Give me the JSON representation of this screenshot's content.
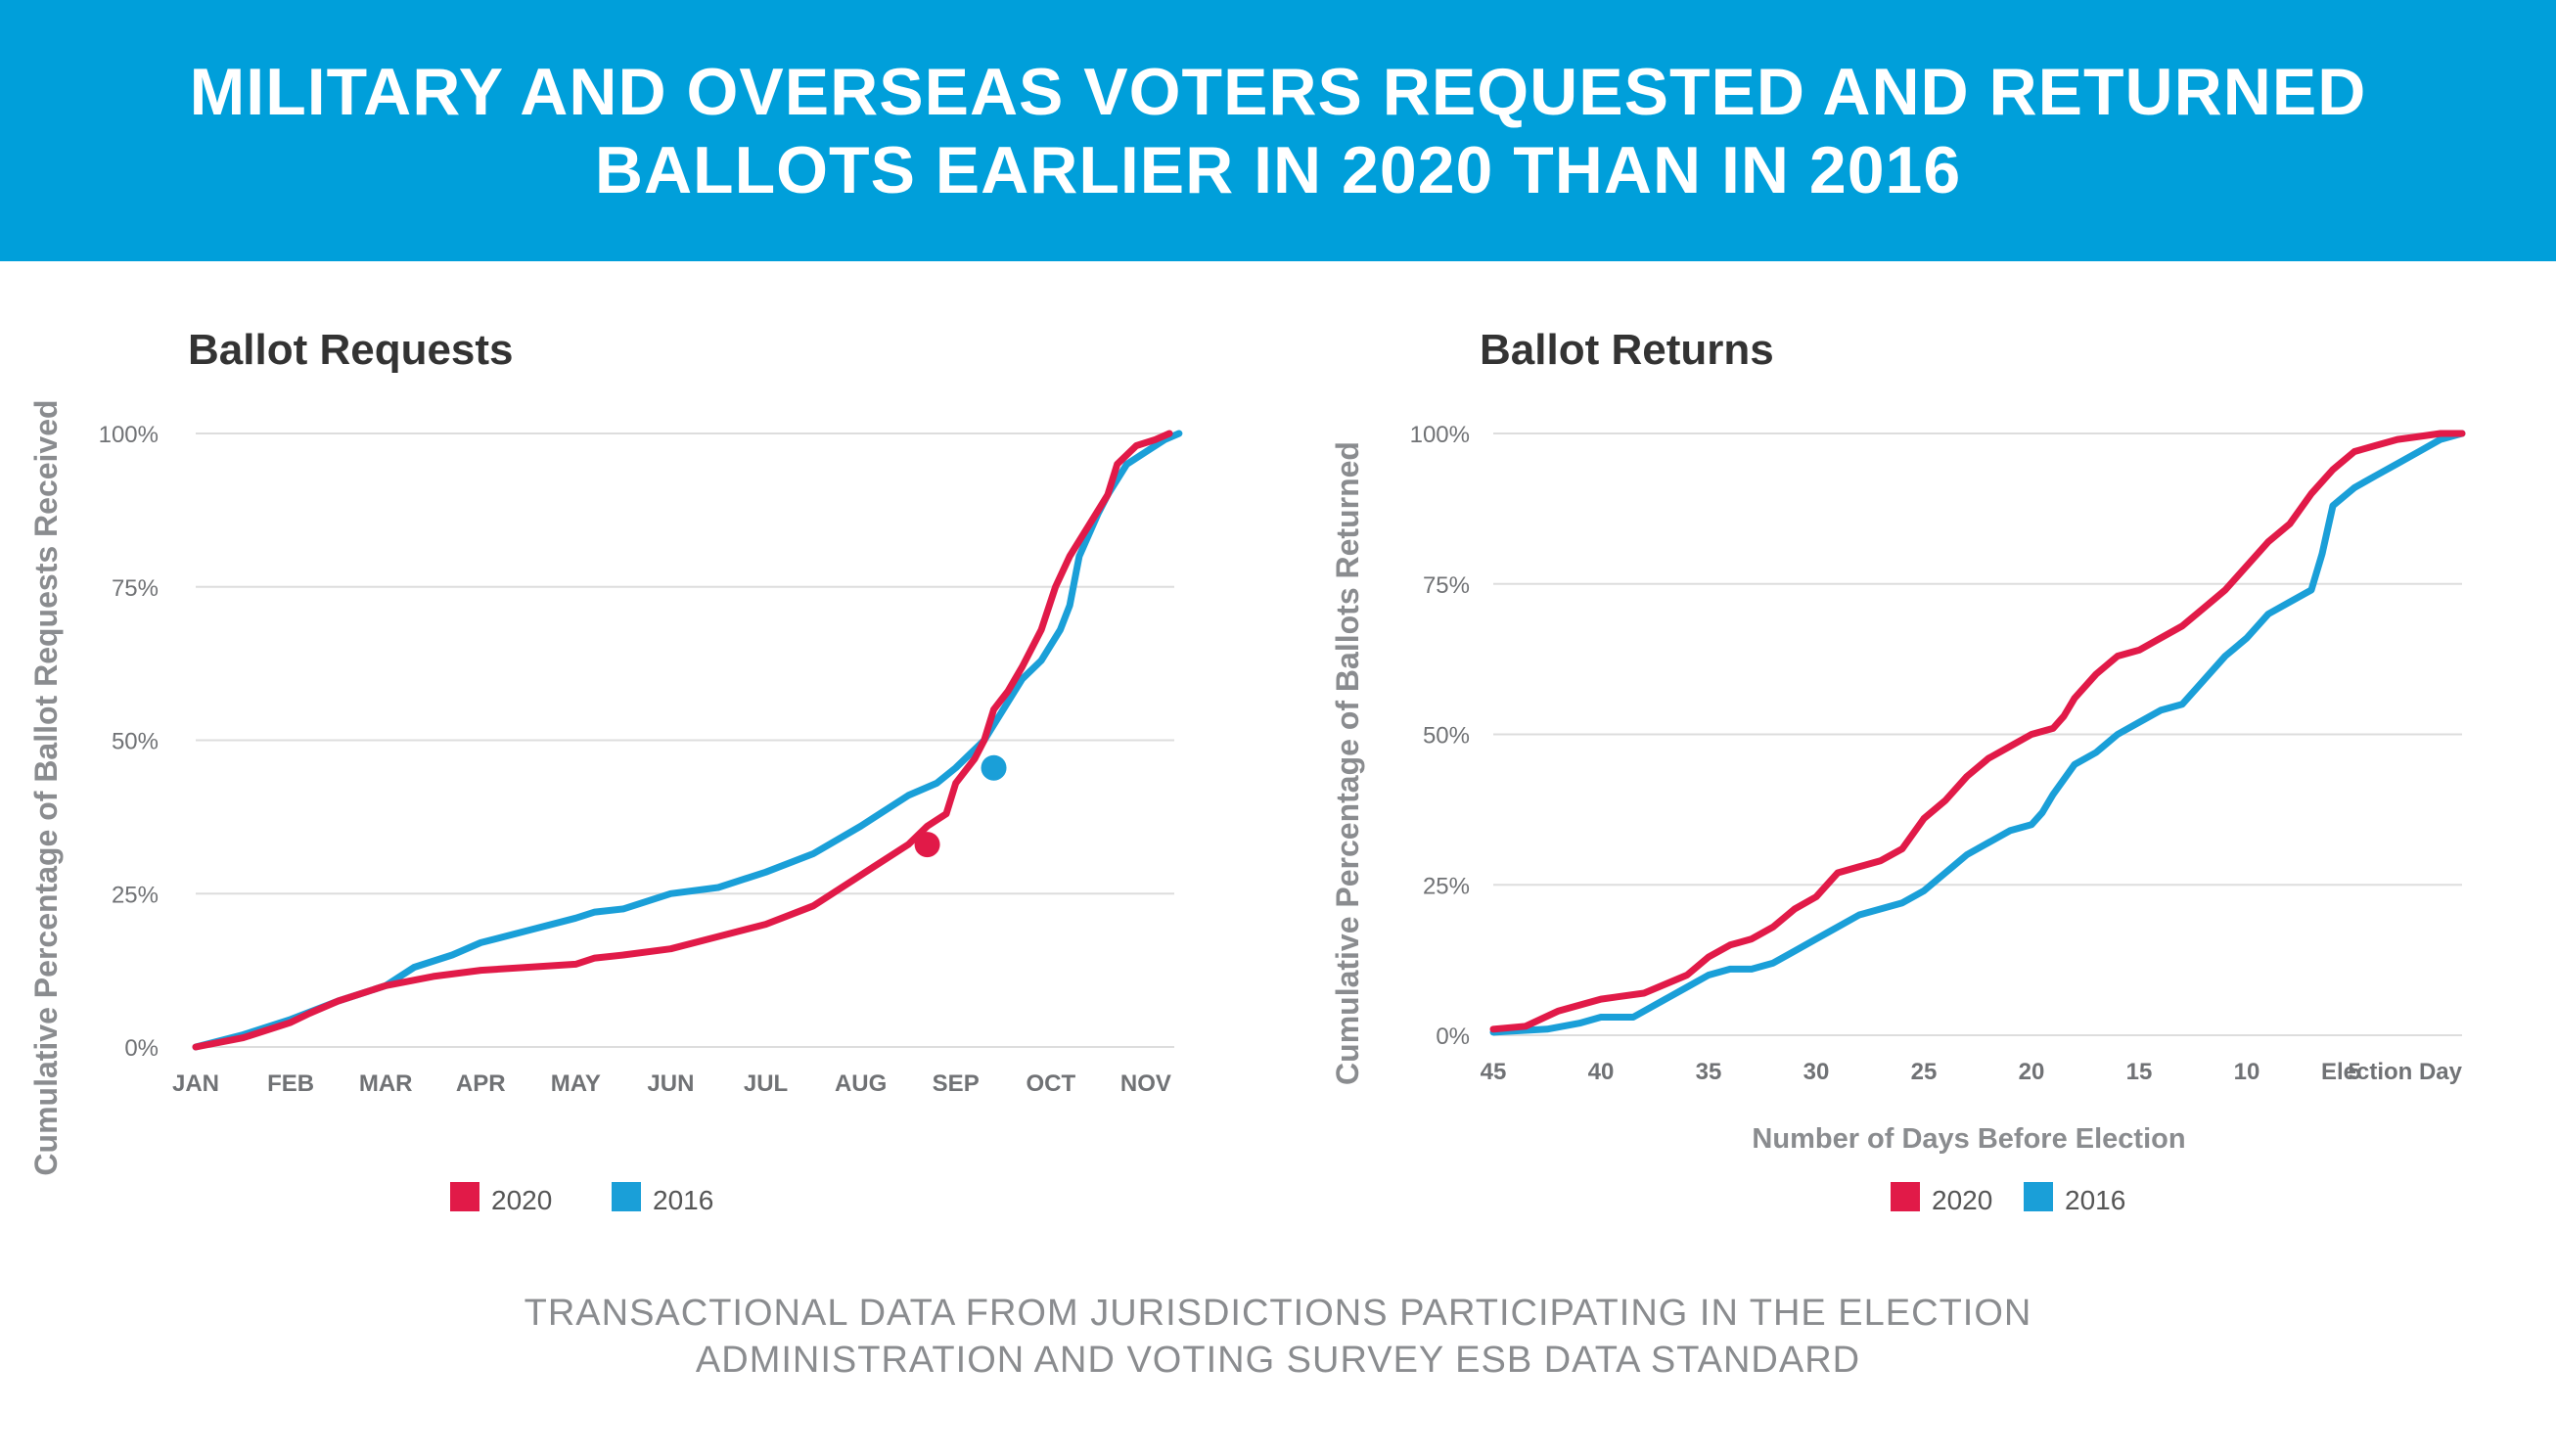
{
  "banner": {
    "title": "MILITARY AND OVERSEAS VOTERS REQUESTED AND RETURNED BALLOTS EARLIER IN 2020 THAN IN 2016",
    "background": "#009fda"
  },
  "colors": {
    "series_2020": "#e11a48",
    "series_2016": "#1a9fd8",
    "grid": "#dddddd",
    "tick_text": "#707275",
    "axis_title_text": "#8a8c8f"
  },
  "footer": {
    "line1": "TRANSACTIONAL DATA FROM JURISDICTIONS PARTICIPATING IN THE ELECTION",
    "line2": "ADMINISTRATION AND VOTING SURVEY ESB DATA STANDARD"
  },
  "chart_data": [
    {
      "type": "line",
      "title": "Ballot Requests",
      "xlabel": "",
      "ylabel": "Cumulative Percentage of Ballot Requests Received",
      "xlim": [
        0,
        10.3
      ],
      "ylim": [
        0,
        100
      ],
      "x_ticks": [
        0,
        1,
        2,
        3,
        4,
        5,
        6,
        7,
        8,
        9,
        10
      ],
      "x_tick_labels": [
        "JAN",
        "FEB",
        "MAR",
        "APR",
        "MAY",
        "JUN",
        "JUL",
        "AUG",
        "SEP",
        "OCT",
        "NOV"
      ],
      "y_ticks": [
        0,
        25,
        50,
        75,
        100
      ],
      "y_tick_labels": [
        "0%",
        "25%",
        "50%",
        "75%",
        "100%"
      ],
      "grid": true,
      "legend": [
        "2020",
        "2016"
      ],
      "legend_position": "bottom",
      "series": [
        {
          "name": "2020",
          "x": [
            0,
            0.5,
            1,
            1.2,
            1.5,
            2,
            2.5,
            3,
            3.5,
            4,
            4.2,
            4.5,
            5,
            5.5,
            6,
            6.5,
            7,
            7.5,
            7.7,
            7.9,
            8,
            8.2,
            8.3,
            8.4,
            8.55,
            8.7,
            8.9,
            9.05,
            9.2,
            9.4,
            9.6,
            9.7,
            9.9,
            10.1,
            10.25
          ],
          "y": [
            0,
            1.5,
            4,
            5.5,
            7.5,
            10,
            11.5,
            12.5,
            13,
            13.5,
            14.5,
            15,
            16,
            18,
            20,
            23,
            28,
            33,
            36,
            38,
            43,
            47,
            50,
            55,
            58,
            62,
            68,
            75,
            80,
            85,
            90,
            95,
            98,
            99,
            100
          ],
          "marker": {
            "x": 7.7,
            "y": 33
          }
        },
        {
          "name": "2016",
          "x": [
            0,
            0.5,
            1,
            1.5,
            2,
            2.3,
            2.7,
            3,
            3.5,
            4,
            4.2,
            4.5,
            5,
            5.5,
            6,
            6.5,
            7,
            7.5,
            7.8,
            8,
            8.3,
            8.5,
            8.7,
            8.9,
            9.1,
            9.2,
            9.3,
            9.5,
            9.6,
            9.8,
            10,
            10.2,
            10.35
          ],
          "y": [
            0,
            2,
            4.5,
            7.5,
            10,
            13,
            15,
            17,
            19,
            21,
            22,
            22.5,
            25,
            26,
            28.5,
            31.5,
            36,
            41,
            43,
            45.5,
            50,
            55,
            60,
            63,
            68,
            72,
            80,
            87,
            90,
            95,
            97,
            99,
            100
          ],
          "marker": {
            "x": 8.4,
            "y": 45.5
          }
        }
      ]
    },
    {
      "type": "line",
      "title": "Ballot Returns",
      "xlabel": "Number of Days Before Election",
      "ylabel": "Cumulative Percentage of Ballots Returned",
      "xlim": [
        45,
        0
      ],
      "ylim": [
        0,
        100
      ],
      "x_ticks": [
        45,
        40,
        35,
        30,
        25,
        20,
        15,
        10,
        5,
        0
      ],
      "x_tick_labels": [
        "45",
        "40",
        "35",
        "30",
        "25",
        "20",
        "15",
        "10",
        "5",
        "Election Day"
      ],
      "y_ticks": [
        0,
        25,
        50,
        75,
        100
      ],
      "y_tick_labels": [
        "0%",
        "25%",
        "50%",
        "75%",
        "100%"
      ],
      "grid": true,
      "legend": [
        "2020",
        "2016"
      ],
      "legend_position": "bottom",
      "series": [
        {
          "name": "2020",
          "x": [
            45,
            43.5,
            42,
            40,
            38,
            36,
            35,
            34,
            33,
            32,
            31,
            30,
            29,
            28,
            27,
            26,
            25,
            24,
            23,
            22,
            21,
            20,
            19,
            18.5,
            18,
            17,
            16,
            15,
            14,
            13,
            12,
            11,
            10,
            9,
            8,
            7,
            6,
            5,
            4,
            3,
            2,
            1,
            0
          ],
          "y": [
            1,
            1.5,
            4,
            6,
            7,
            10,
            13,
            15,
            16,
            18,
            21,
            23,
            27,
            28,
            29,
            31,
            36,
            39,
            43,
            46,
            48,
            50,
            51,
            53,
            56,
            60,
            63,
            64,
            66,
            68,
            71,
            74,
            78,
            82,
            85,
            90,
            94,
            97,
            98,
            99,
            99.5,
            100,
            100
          ]
        },
        {
          "name": "2016",
          "x": [
            45,
            42.5,
            41,
            40,
            38.5,
            37,
            36,
            35,
            34,
            33,
            32,
            31,
            30,
            29,
            28,
            27,
            26,
            25,
            24,
            23,
            22,
            21,
            20,
            19.5,
            19,
            18,
            17,
            16,
            15,
            14,
            13,
            12,
            11,
            10,
            9,
            8,
            7,
            6.5,
            6,
            5,
            4,
            3,
            2,
            1,
            0
          ],
          "y": [
            0.5,
            1,
            2,
            3,
            3,
            6,
            8,
            10,
            11,
            11,
            12,
            14,
            16,
            18,
            20,
            21,
            22,
            24,
            27,
            30,
            32,
            34,
            35,
            37,
            40,
            45,
            47,
            50,
            52,
            54,
            55,
            59,
            63,
            66,
            70,
            72,
            74,
            80,
            88,
            91,
            93,
            95,
            97,
            99,
            100
          ]
        }
      ]
    }
  ]
}
